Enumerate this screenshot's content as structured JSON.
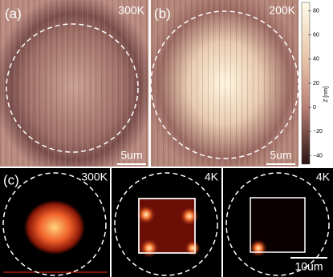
{
  "panels": [
    {
      "label": "(a)",
      "temperature": "300K",
      "scale_bar": "5um"
    },
    {
      "label": "(b)",
      "temperature": "200K",
      "scale_bar": "5um"
    },
    {
      "label": "(c)",
      "temperature": "300K"
    },
    {
      "temperature": "4K"
    },
    {
      "temperature": "4K",
      "scale_bar": "10um"
    }
  ],
  "colorbar": {
    "label": "Z [nm]",
    "lim": [
      -47,
      87
    ],
    "ticks": [
      80,
      60,
      40,
      20,
      0,
      {
        "value": -20,
        "label": "−20"
      },
      {
        "value": -40,
        "label": "−40"
      }
    ]
  }
}
